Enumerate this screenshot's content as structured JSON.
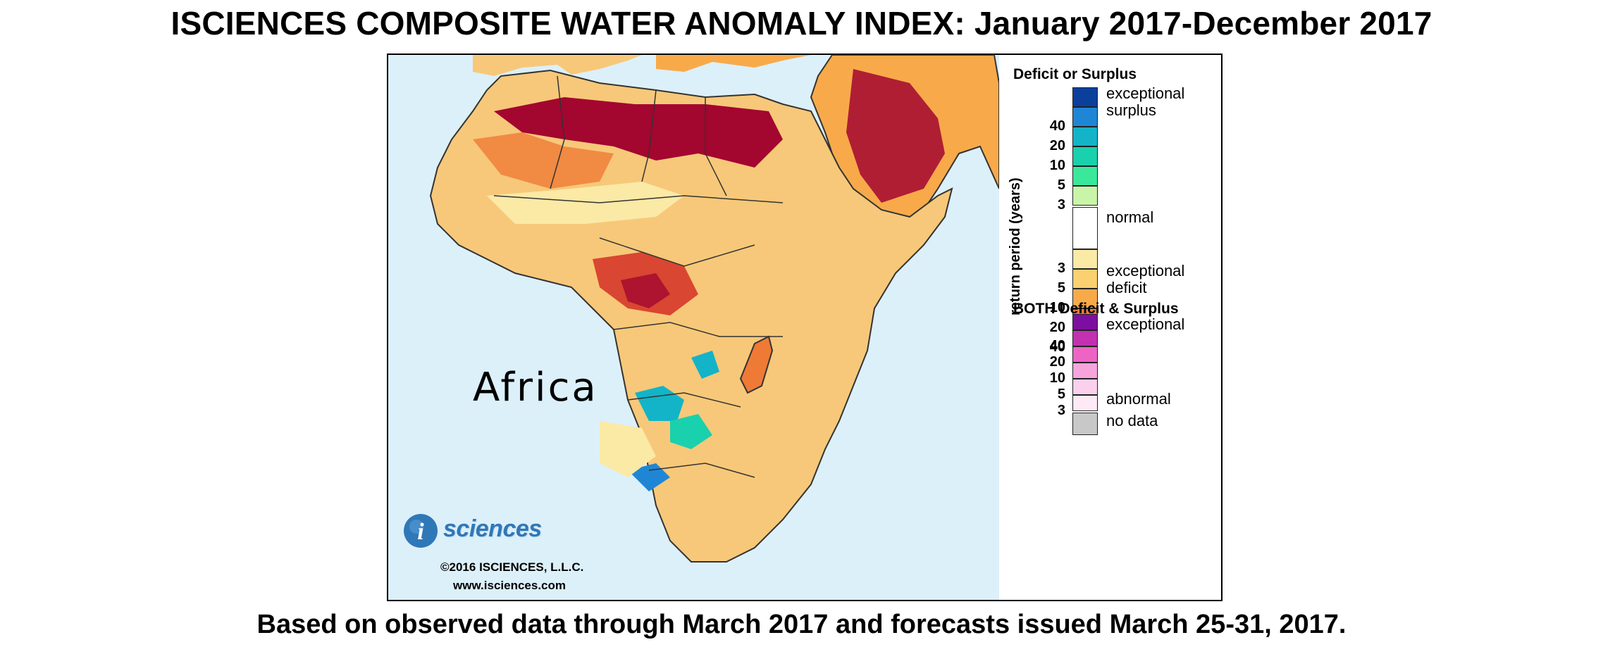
{
  "title": "ISCIENCES COMPOSITE WATER ANOMALY INDEX: January 2017-December 2017",
  "subtitle": "Based on observed data through March 2017 and forecasts issued March 25-31, 2017.",
  "map": {
    "region_label": "Africa",
    "colors": {
      "ocean": "#dcf0fa",
      "land_base": "#f7c879",
      "border": "#333333"
    }
  },
  "logo": {
    "wordmark": "sciences",
    "mark_glyph": "i",
    "copyright": "©2016 ISCIENCES, L.L.C.",
    "url": "www.isciences.com"
  },
  "legend": {
    "deficit_surplus_heading": "Deficit or Surplus",
    "axis_label": "return period (years)",
    "labels": {
      "exceptional_surplus_1": "exceptional",
      "exceptional_surplus_2": "surplus",
      "normal": "normal",
      "exceptional_deficit_1": "exceptional",
      "exceptional_deficit_2": "deficit"
    },
    "surplus_scale": [
      {
        "num": "",
        "color": "#0a3f9c"
      },
      {
        "num": "40",
        "color": "#1f86d6"
      },
      {
        "num": "20",
        "color": "#13b4c8"
      },
      {
        "num": "10",
        "color": "#19d1ad"
      },
      {
        "num": "5",
        "color": "#39e89a"
      },
      {
        "num": "3",
        "color": "#c8f5a8"
      }
    ],
    "normal_color": "#ffffff",
    "deficit_scale": [
      {
        "num": "3",
        "color": "#fbe9a6"
      },
      {
        "num": "5",
        "color": "#fbd071"
      },
      {
        "num": "10",
        "color": "#f8aa4a"
      },
      {
        "num": "20",
        "color": "#ef7a36"
      },
      {
        "num": "40",
        "color": "#d94631"
      },
      {
        "num": "",
        "color": "#a3062f"
      }
    ],
    "both_heading": "BOTH Deficit & Surplus",
    "both_labels": {
      "top": "exceptional",
      "bottom": "abnormal"
    },
    "both_scale": [
      {
        "num": "",
        "color": "#7d0fa0"
      },
      {
        "num": "40",
        "color": "#c131b0"
      },
      {
        "num": "20",
        "color": "#ee64c4"
      },
      {
        "num": "10",
        "color": "#f7a4dd"
      },
      {
        "num": "5",
        "color": "#fbd0ec"
      },
      {
        "num": "3",
        "color": "#fdeaf6"
      }
    ],
    "no_data_label": "no data",
    "no_data_color": "#c8c8c8"
  }
}
